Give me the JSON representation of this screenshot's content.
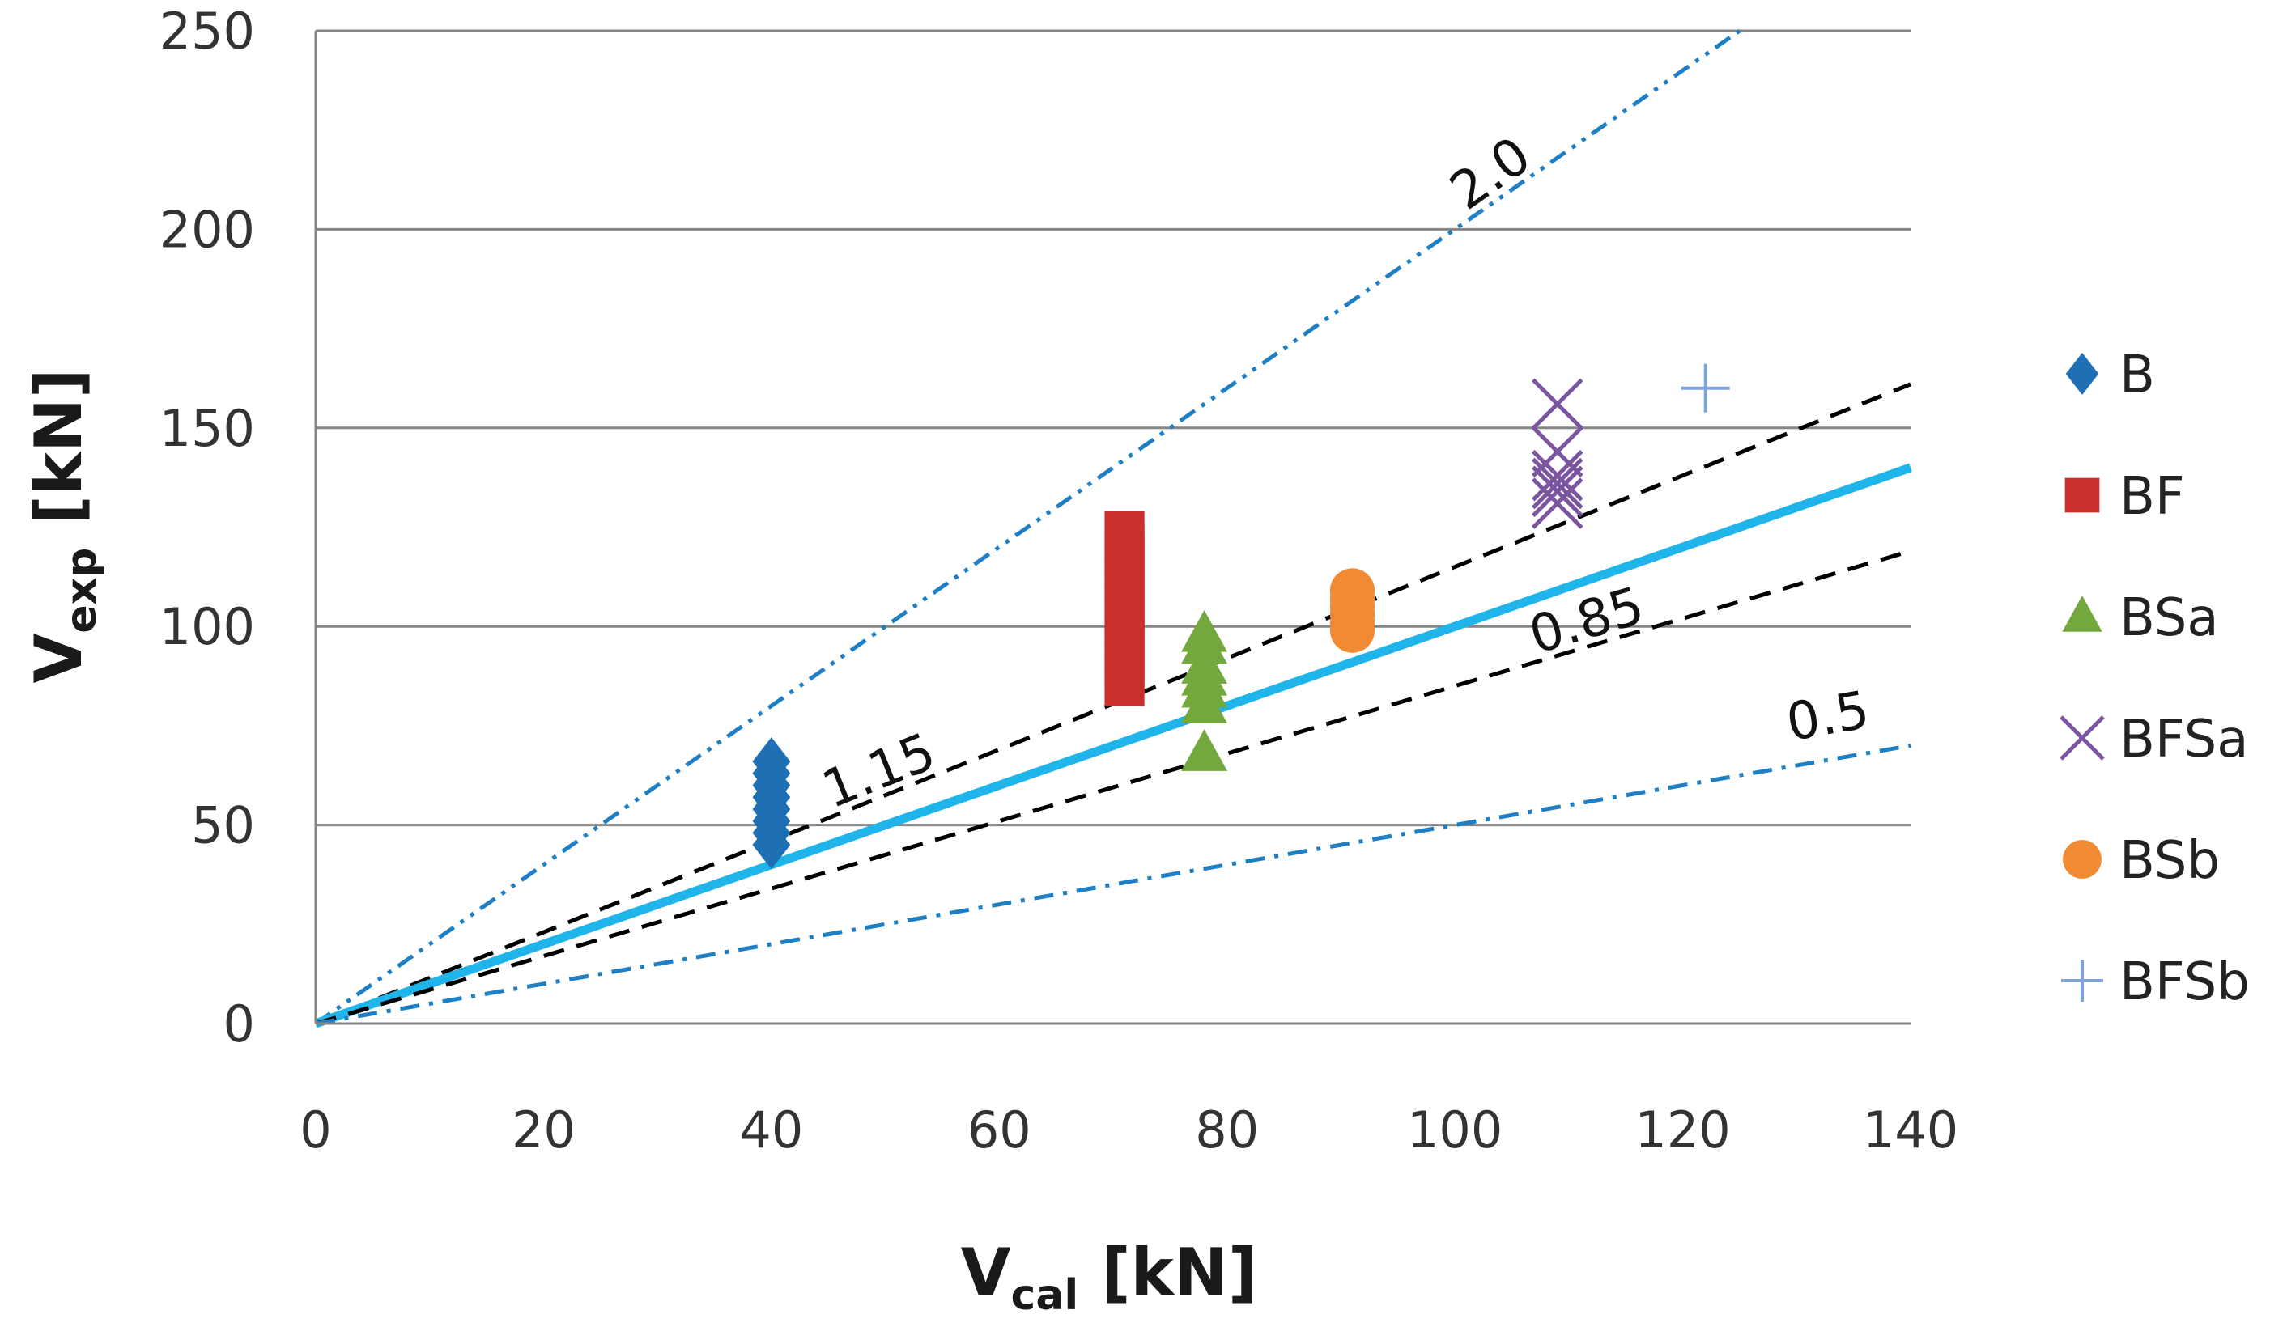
{
  "chart_data": {
    "type": "scatter",
    "title": "",
    "xlabel": {
      "main": "V",
      "sub": "cal",
      "unit": " [kN]"
    },
    "ylabel": {
      "main": "V",
      "sub": "exp",
      "unit": " [kN]"
    },
    "xlim": [
      0,
      140
    ],
    "ylim": [
      0,
      250
    ],
    "xticks": [
      0,
      20,
      40,
      60,
      80,
      100,
      120,
      140
    ],
    "yticks": [
      0,
      50,
      100,
      150,
      200,
      250
    ],
    "grid": "horizontal",
    "legend_position": "right",
    "series": [
      {
        "name": "B",
        "marker": "diamond",
        "color": "#1f6fb5",
        "points": [
          [
            40,
            45
          ],
          [
            40,
            48
          ],
          [
            40,
            51
          ],
          [
            40,
            54
          ],
          [
            40,
            57
          ],
          [
            40,
            60
          ],
          [
            40,
            63
          ],
          [
            40,
            66
          ]
        ]
      },
      {
        "name": "BF",
        "marker": "square",
        "color": "#c9302c",
        "points": [
          [
            71,
            85
          ],
          [
            71,
            88
          ],
          [
            71,
            91
          ],
          [
            71,
            94
          ],
          [
            71,
            97
          ],
          [
            71,
            100
          ],
          [
            71,
            103
          ],
          [
            71,
            106
          ],
          [
            71,
            109
          ],
          [
            71,
            112
          ],
          [
            71,
            115
          ],
          [
            71,
            118
          ],
          [
            71,
            121
          ],
          [
            71,
            124
          ]
        ]
      },
      {
        "name": "BSa",
        "marker": "triangle",
        "color": "#72a83e",
        "points": [
          [
            78,
            68
          ],
          [
            78,
            80
          ],
          [
            78,
            84
          ],
          [
            78,
            87
          ],
          [
            78,
            90
          ],
          [
            78,
            95
          ],
          [
            78,
            98
          ]
        ]
      },
      {
        "name": "BFSa",
        "marker": "x",
        "color": "#7b55a0",
        "points": [
          [
            109,
            131
          ],
          [
            109,
            134
          ],
          [
            109,
            136
          ],
          [
            109,
            138
          ],
          [
            109,
            144
          ],
          [
            109,
            156
          ]
        ]
      },
      {
        "name": "BSb",
        "marker": "circle",
        "color": "#f08a33",
        "points": [
          [
            91,
            99
          ],
          [
            91,
            101
          ],
          [
            91,
            103
          ],
          [
            91,
            105
          ],
          [
            91,
            107
          ],
          [
            91,
            109
          ]
        ]
      },
      {
        "name": "BFSb",
        "marker": "plus",
        "color": "#7ea3d6",
        "points": [
          [
            122,
            160
          ]
        ]
      }
    ],
    "reference_lines": [
      {
        "label": "2.0",
        "slope": 2.0,
        "style": "dash-dot-dot",
        "color": "#1f7fc4"
      },
      {
        "label": "1.15",
        "slope": 1.15,
        "style": "dashed",
        "color": "#000000"
      },
      {
        "label": "",
        "slope": 1.0,
        "style": "solid",
        "color": "#1fb4ea"
      },
      {
        "label": "0.85",
        "slope": 0.85,
        "style": "dashed",
        "color": "#000000"
      },
      {
        "label": "0.5",
        "slope": 0.5,
        "style": "dash-dot",
        "color": "#1f7fc4"
      }
    ]
  }
}
